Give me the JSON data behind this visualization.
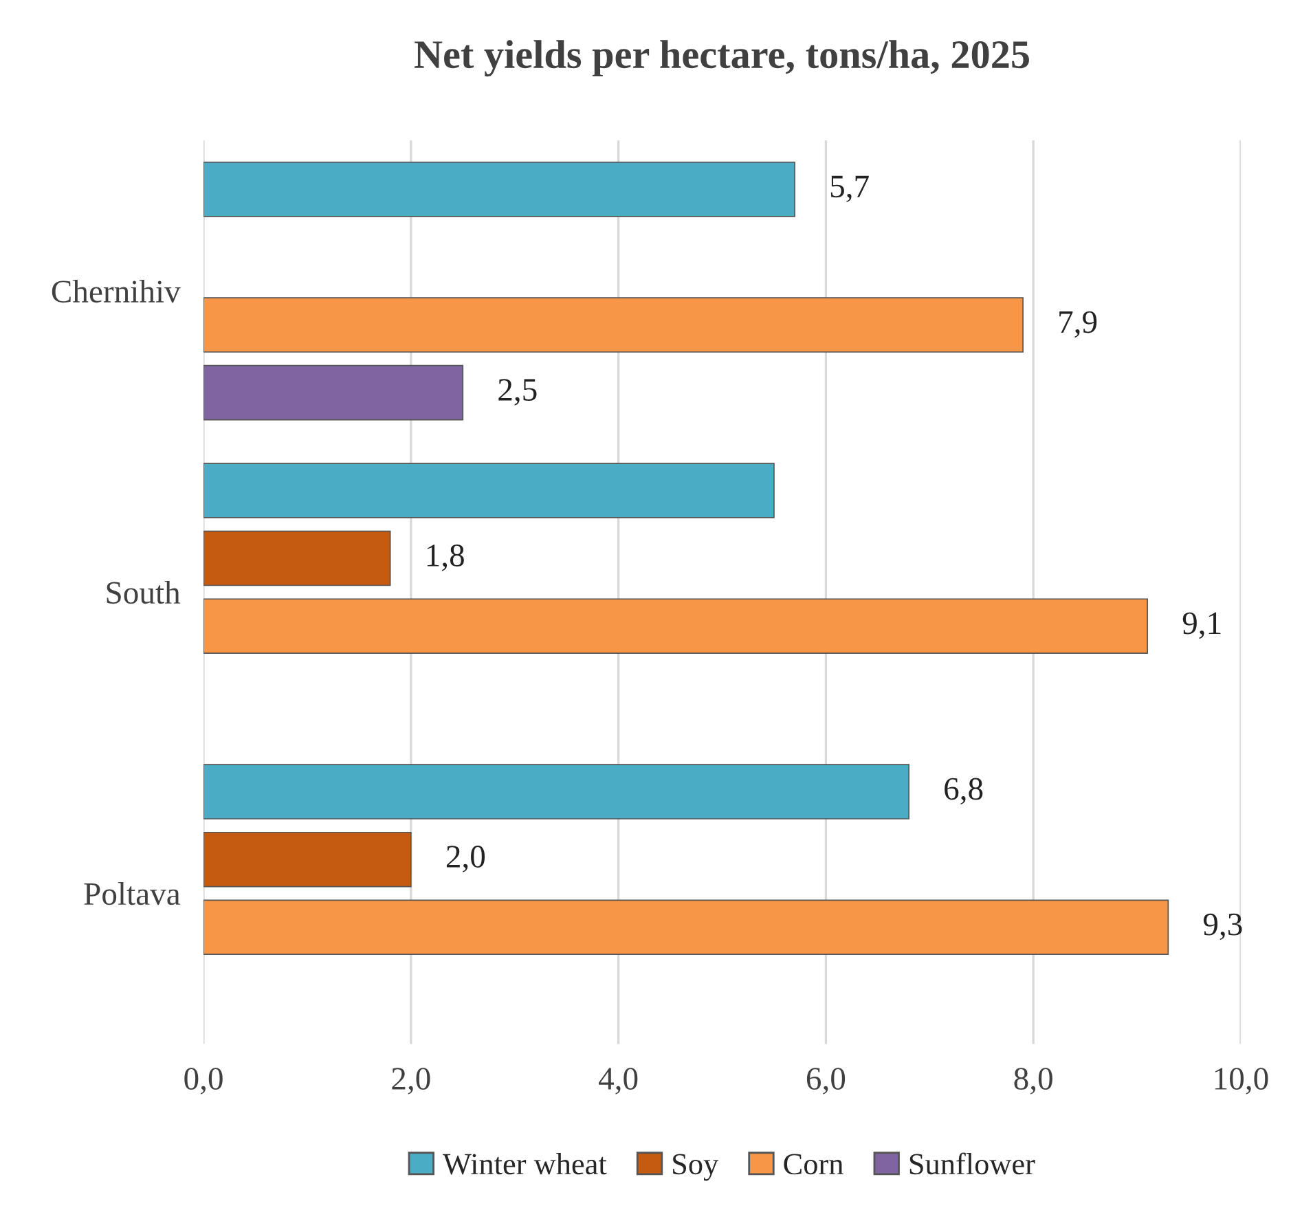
{
  "chart_data": {
    "type": "bar",
    "orientation": "horizontal",
    "title": "Net yields per hectare, tons/ha, 2025",
    "categories": [
      "Chernihiv",
      "South",
      "Poltava"
    ],
    "series": [
      {
        "name": "Winter wheat",
        "color": "#4bacc6",
        "values": [
          5.7,
          5.5,
          6.8
        ],
        "value_labels": [
          "5,7",
          null,
          "6,8"
        ]
      },
      {
        "name": "Soy",
        "color": "#c55a11",
        "values": [
          null,
          1.8,
          2.0
        ],
        "value_labels": [
          null,
          "1,8",
          "2,0"
        ]
      },
      {
        "name": "Corn",
        "color": "#f79646",
        "values": [
          7.9,
          9.1,
          9.3
        ],
        "value_labels": [
          "7,9",
          "9,1",
          "9,3"
        ]
      },
      {
        "name": "Sunflower",
        "color": "#8064a2",
        "values": [
          2.5,
          null,
          null
        ],
        "value_labels": [
          "2,5",
          null,
          null
        ]
      }
    ],
    "xlim": [
      0,
      10
    ],
    "xticks": [
      {
        "value": 0,
        "label": "0,0"
      },
      {
        "value": 2,
        "label": "2,0"
      },
      {
        "value": 4,
        "label": "4,0"
      },
      {
        "value": 6,
        "label": "6,0"
      },
      {
        "value": 8,
        "label": "8,0"
      },
      {
        "value": 10,
        "label": "10,0"
      }
    ],
    "grid": "x",
    "legend": "bottom"
  }
}
